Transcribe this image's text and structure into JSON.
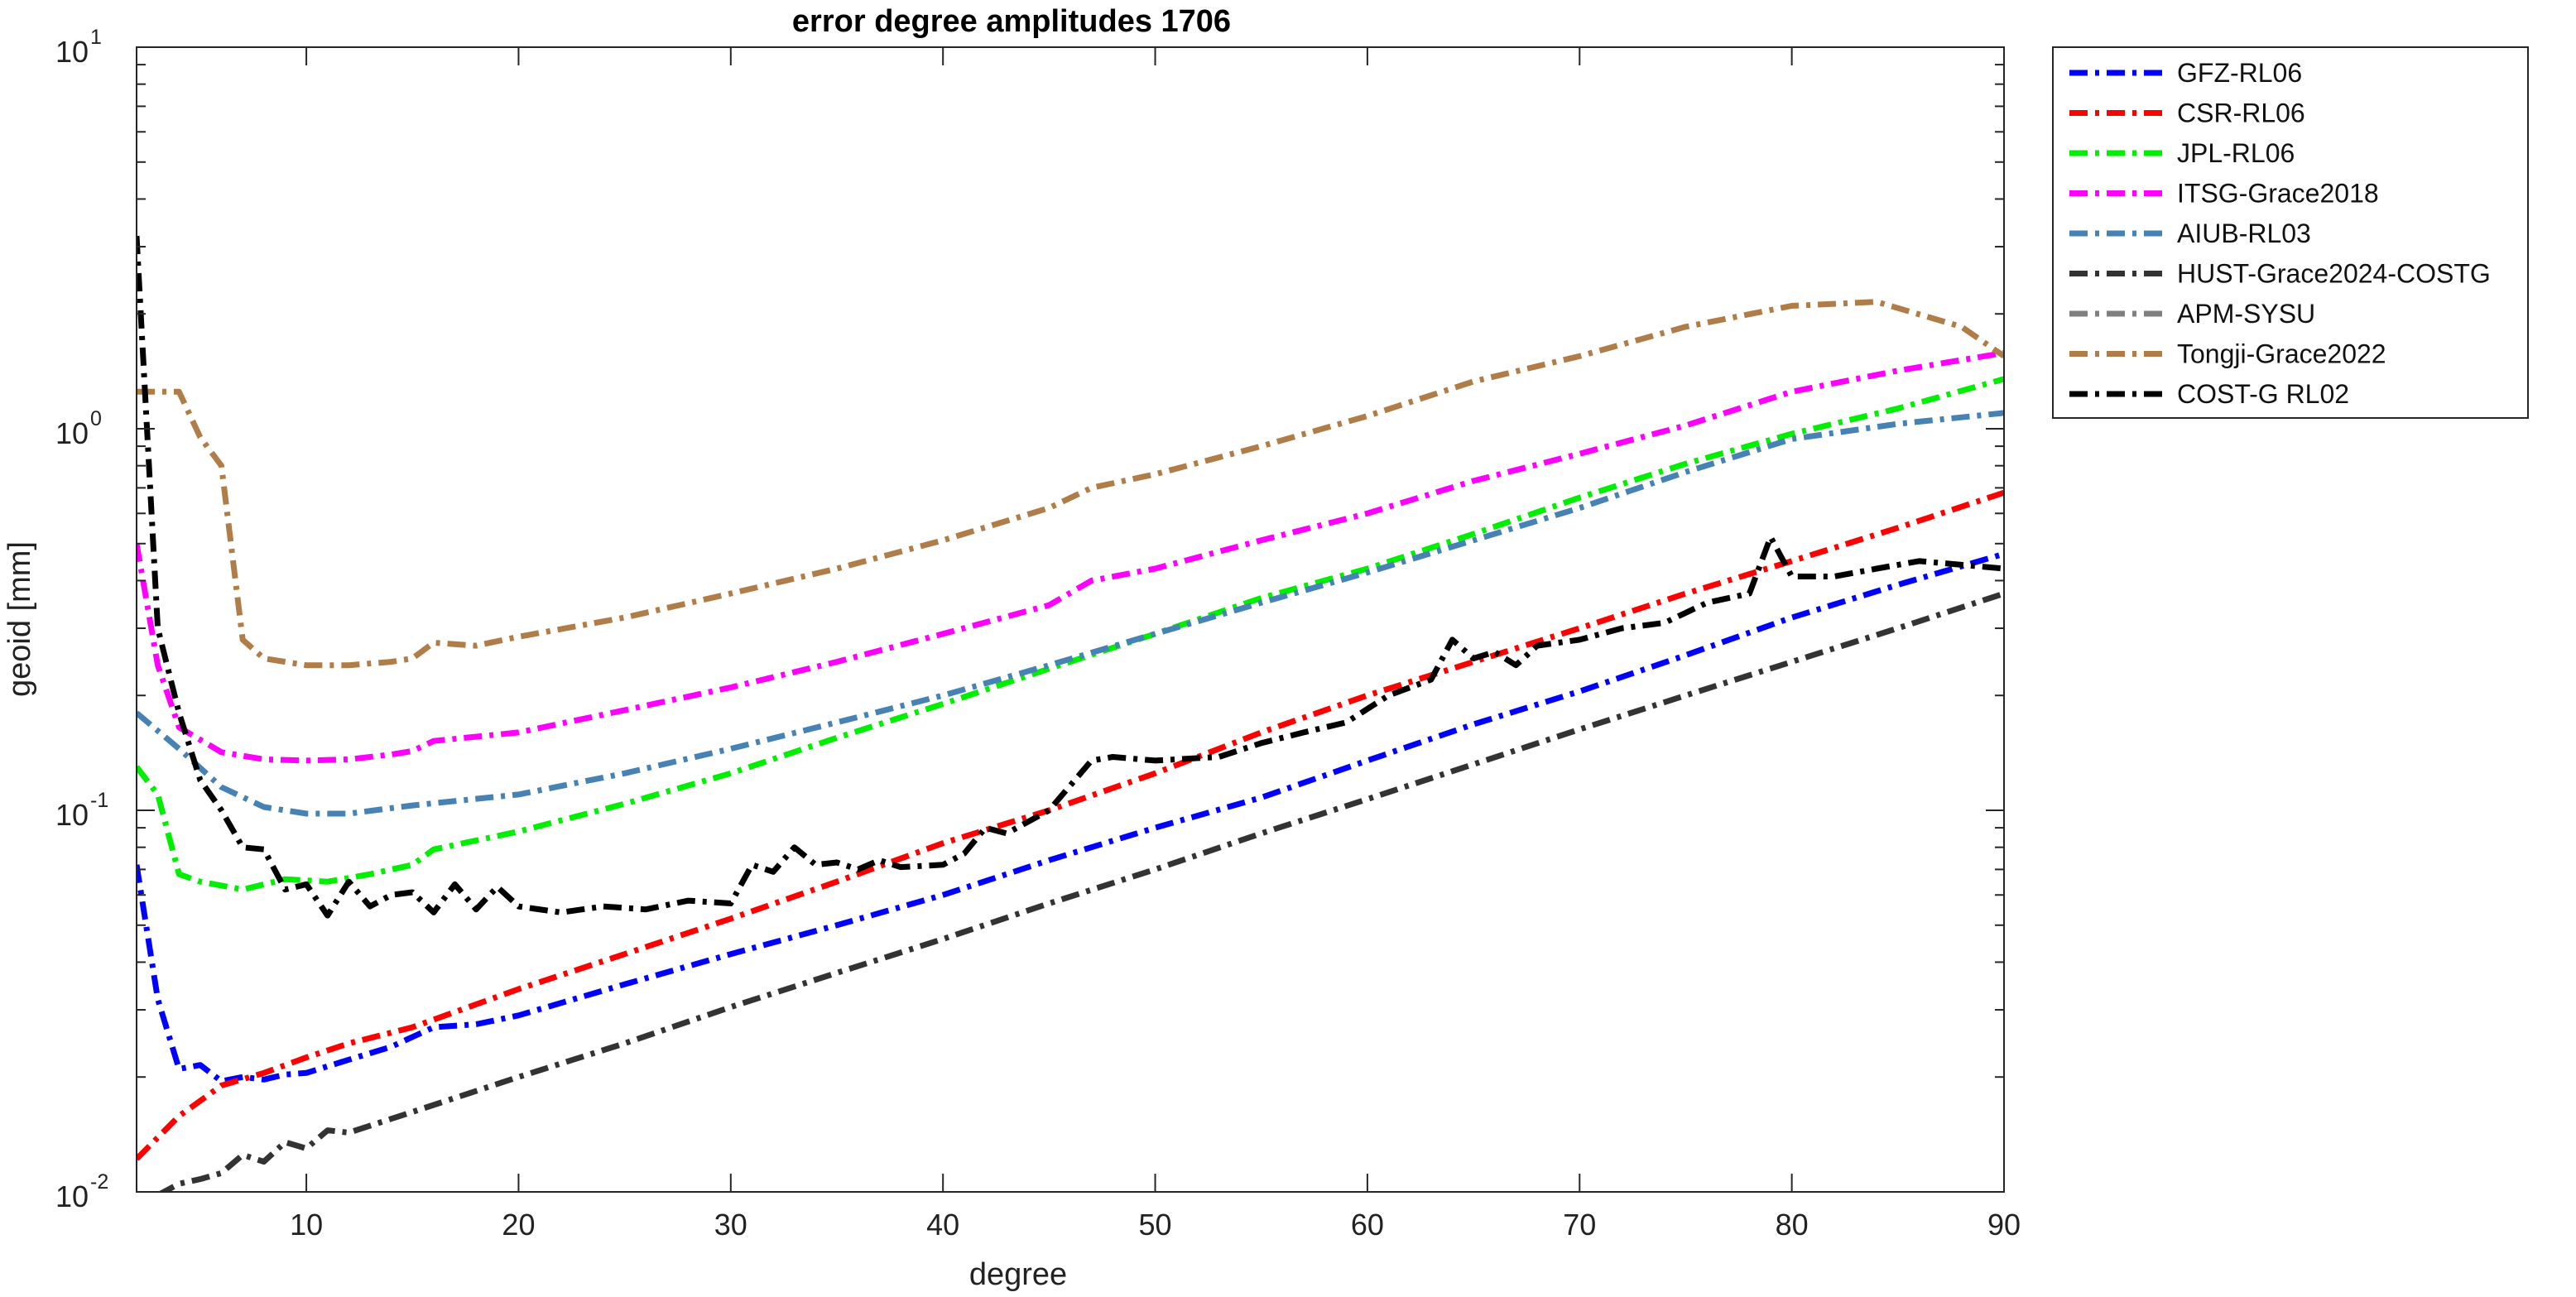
{
  "chart_data": {
    "type": "line",
    "title": "error degree amplitudes 1706",
    "xlabel": "degree",
    "ylabel": "geoid [mm]",
    "xlim": [
      2,
      90
    ],
    "ylim": [
      0.01,
      10
    ],
    "yscale": "log",
    "grid": false,
    "legend_position": "outside-right",
    "x_ticks": [
      10,
      20,
      30,
      40,
      50,
      60,
      70,
      80,
      90
    ],
    "y_ticks": [
      {
        "value": 0.01,
        "base": "10",
        "exp": "-2"
      },
      {
        "value": 0.1,
        "base": "10",
        "exp": "-1"
      },
      {
        "value": 1,
        "base": "10",
        "exp": "0"
      },
      {
        "value": 10,
        "base": "10",
        "exp": "1"
      }
    ],
    "series": [
      {
        "name": "GFZ-RL06",
        "color": "#0000ff",
        "dash": "dashdot",
        "points": [
          [
            2,
            0.072
          ],
          [
            3,
            0.032
          ],
          [
            4,
            0.021
          ],
          [
            5,
            0.0215
          ],
          [
            6,
            0.0195
          ],
          [
            7,
            0.02
          ],
          [
            8,
            0.0197
          ],
          [
            9,
            0.0203
          ],
          [
            10,
            0.0205
          ],
          [
            12,
            0.0222
          ],
          [
            14,
            0.024
          ],
          [
            16,
            0.027
          ],
          [
            18,
            0.0275
          ],
          [
            20,
            0.029
          ],
          [
            25,
            0.035
          ],
          [
            30,
            0.042
          ],
          [
            35,
            0.05
          ],
          [
            40,
            0.06
          ],
          [
            45,
            0.074
          ],
          [
            50,
            0.09
          ],
          [
            55,
            0.108
          ],
          [
            60,
            0.135
          ],
          [
            65,
            0.168
          ],
          [
            70,
            0.205
          ],
          [
            75,
            0.255
          ],
          [
            80,
            0.32
          ],
          [
            85,
            0.39
          ],
          [
            90,
            0.47
          ]
        ]
      },
      {
        "name": "CSR-RL06",
        "color": "#ff0000",
        "dash": "dashdot",
        "points": [
          [
            2,
            0.0122
          ],
          [
            4,
            0.0158
          ],
          [
            6,
            0.019
          ],
          [
            8,
            0.0205
          ],
          [
            10,
            0.0225
          ],
          [
            12,
            0.0245
          ],
          [
            15,
            0.027
          ],
          [
            20,
            0.034
          ],
          [
            25,
            0.042
          ],
          [
            30,
            0.052
          ],
          [
            35,
            0.065
          ],
          [
            40,
            0.082
          ],
          [
            45,
            0.1
          ],
          [
            50,
            0.125
          ],
          [
            55,
            0.16
          ],
          [
            60,
            0.2
          ],
          [
            65,
            0.245
          ],
          [
            70,
            0.3
          ],
          [
            75,
            0.37
          ],
          [
            80,
            0.45
          ],
          [
            85,
            0.55
          ],
          [
            90,
            0.68
          ]
        ]
      },
      {
        "name": "JPL-RL06",
        "color": "#00ee00",
        "dash": "dashdot",
        "points": [
          [
            2,
            0.13
          ],
          [
            3,
            0.11
          ],
          [
            4,
            0.068
          ],
          [
            5,
            0.065
          ],
          [
            7,
            0.062
          ],
          [
            9,
            0.066
          ],
          [
            11,
            0.065
          ],
          [
            13,
            0.068
          ],
          [
            15,
            0.072
          ],
          [
            16,
            0.079
          ],
          [
            20,
            0.088
          ],
          [
            25,
            0.104
          ],
          [
            30,
            0.125
          ],
          [
            35,
            0.155
          ],
          [
            40,
            0.19
          ],
          [
            45,
            0.235
          ],
          [
            50,
            0.29
          ],
          [
            55,
            0.36
          ],
          [
            60,
            0.43
          ],
          [
            65,
            0.53
          ],
          [
            70,
            0.66
          ],
          [
            75,
            0.81
          ],
          [
            80,
            0.97
          ],
          [
            85,
            1.13
          ],
          [
            90,
            1.35
          ]
        ]
      },
      {
        "name": "ITSG-Grace2018",
        "color": "#ff00ff",
        "dash": "dashdot",
        "points": [
          [
            2,
            0.5
          ],
          [
            3,
            0.24
          ],
          [
            4,
            0.165
          ],
          [
            6,
            0.142
          ],
          [
            8,
            0.136
          ],
          [
            10,
            0.135
          ],
          [
            12,
            0.136
          ],
          [
            14,
            0.14
          ],
          [
            15,
            0.143
          ],
          [
            16,
            0.152
          ],
          [
            20,
            0.16
          ],
          [
            25,
            0.183
          ],
          [
            30,
            0.21
          ],
          [
            35,
            0.245
          ],
          [
            40,
            0.29
          ],
          [
            45,
            0.345
          ],
          [
            47,
            0.4
          ],
          [
            50,
            0.43
          ],
          [
            55,
            0.51
          ],
          [
            60,
            0.6
          ],
          [
            65,
            0.73
          ],
          [
            70,
            0.86
          ],
          [
            75,
            1.02
          ],
          [
            80,
            1.25
          ],
          [
            85,
            1.42
          ],
          [
            90,
            1.58
          ]
        ]
      },
      {
        "name": "AIUB-RL03",
        "color": "#4682b4",
        "dash": "dashdot",
        "points": [
          [
            2,
            0.18
          ],
          [
            4,
            0.145
          ],
          [
            6,
            0.115
          ],
          [
            8,
            0.102
          ],
          [
            10,
            0.098
          ],
          [
            12,
            0.098
          ],
          [
            15,
            0.103
          ],
          [
            20,
            0.11
          ],
          [
            25,
            0.125
          ],
          [
            30,
            0.145
          ],
          [
            35,
            0.17
          ],
          [
            40,
            0.2
          ],
          [
            45,
            0.24
          ],
          [
            50,
            0.29
          ],
          [
            55,
            0.35
          ],
          [
            60,
            0.42
          ],
          [
            65,
            0.51
          ],
          [
            70,
            0.62
          ],
          [
            75,
            0.77
          ],
          [
            80,
            0.94
          ],
          [
            85,
            1.03
          ],
          [
            90,
            1.1
          ]
        ]
      },
      {
        "name": "HUST-Grace2024-COSTG",
        "color": "#333333",
        "dash": "dashdot",
        "points": [
          [
            3,
            0.0098
          ],
          [
            4,
            0.0105
          ],
          [
            5,
            0.0108
          ],
          [
            6,
            0.0112
          ],
          [
            7,
            0.0125
          ],
          [
            8,
            0.012
          ],
          [
            9,
            0.0135
          ],
          [
            10,
            0.013
          ],
          [
            11,
            0.0145
          ],
          [
            12,
            0.0143
          ],
          [
            15,
            0.0162
          ],
          [
            20,
            0.02
          ],
          [
            25,
            0.0245
          ],
          [
            30,
            0.0305
          ],
          [
            35,
            0.0375
          ],
          [
            40,
            0.046
          ],
          [
            45,
            0.057
          ],
          [
            50,
            0.07
          ],
          [
            55,
            0.087
          ],
          [
            60,
            0.107
          ],
          [
            65,
            0.132
          ],
          [
            70,
            0.163
          ],
          [
            75,
            0.2
          ],
          [
            80,
            0.245
          ],
          [
            85,
            0.3
          ],
          [
            90,
            0.37
          ]
        ]
      },
      {
        "name": "APM-SYSU",
        "color": "#808080",
        "dash": "dashdot",
        "points": []
      },
      {
        "name": "Tongji-Grace2022",
        "color": "#b07d48",
        "dash": "dashdot",
        "points": [
          [
            2,
            1.25
          ],
          [
            4,
            1.25
          ],
          [
            5,
            0.95
          ],
          [
            6,
            0.8
          ],
          [
            7,
            0.28
          ],
          [
            8,
            0.25
          ],
          [
            10,
            0.24
          ],
          [
            12,
            0.24
          ],
          [
            14,
            0.245
          ],
          [
            15,
            0.25
          ],
          [
            16,
            0.275
          ],
          [
            18,
            0.27
          ],
          [
            20,
            0.285
          ],
          [
            25,
            0.32
          ],
          [
            30,
            0.37
          ],
          [
            35,
            0.43
          ],
          [
            40,
            0.51
          ],
          [
            45,
            0.62
          ],
          [
            47,
            0.7
          ],
          [
            50,
            0.76
          ],
          [
            55,
            0.9
          ],
          [
            60,
            1.08
          ],
          [
            65,
            1.33
          ],
          [
            70,
            1.55
          ],
          [
            75,
            1.85
          ],
          [
            80,
            2.1
          ],
          [
            84,
            2.15
          ],
          [
            88,
            1.85
          ],
          [
            90,
            1.55
          ]
        ]
      },
      {
        "name": "COST-G RL02",
        "color": "#000000",
        "dash": "dashdot",
        "points": [
          [
            2,
            3.2
          ],
          [
            3,
            0.3
          ],
          [
            4,
            0.18
          ],
          [
            5,
            0.12
          ],
          [
            6,
            0.1
          ],
          [
            7,
            0.08
          ],
          [
            8,
            0.079
          ],
          [
            9,
            0.062
          ],
          [
            10,
            0.064
          ],
          [
            11,
            0.053
          ],
          [
            12,
            0.065
          ],
          [
            13,
            0.056
          ],
          [
            14,
            0.06
          ],
          [
            15,
            0.061
          ],
          [
            16,
            0.054
          ],
          [
            17,
            0.064
          ],
          [
            18,
            0.055
          ],
          [
            19,
            0.063
          ],
          [
            20,
            0.056
          ],
          [
            22,
            0.054
          ],
          [
            24,
            0.056
          ],
          [
            26,
            0.055
          ],
          [
            28,
            0.058
          ],
          [
            30,
            0.057
          ],
          [
            31,
            0.072
          ],
          [
            32,
            0.069
          ],
          [
            33,
            0.08
          ],
          [
            34,
            0.072
          ],
          [
            35,
            0.073
          ],
          [
            36,
            0.07
          ],
          [
            37,
            0.074
          ],
          [
            38,
            0.071
          ],
          [
            40,
            0.072
          ],
          [
            41,
            0.077
          ],
          [
            42,
            0.09
          ],
          [
            43,
            0.087
          ],
          [
            45,
            0.1
          ],
          [
            47,
            0.135
          ],
          [
            48,
            0.138
          ],
          [
            50,
            0.135
          ],
          [
            53,
            0.138
          ],
          [
            55,
            0.15
          ],
          [
            57,
            0.16
          ],
          [
            59,
            0.17
          ],
          [
            61,
            0.2
          ],
          [
            63,
            0.22
          ],
          [
            64,
            0.28
          ],
          [
            65,
            0.25
          ],
          [
            66,
            0.26
          ],
          [
            67,
            0.24
          ],
          [
            68,
            0.27
          ],
          [
            70,
            0.28
          ],
          [
            72,
            0.3
          ],
          [
            74,
            0.31
          ],
          [
            76,
            0.35
          ],
          [
            78,
            0.37
          ],
          [
            79,
            0.52
          ],
          [
            80,
            0.41
          ],
          [
            82,
            0.41
          ],
          [
            84,
            0.43
          ],
          [
            86,
            0.45
          ],
          [
            88,
            0.44
          ],
          [
            90,
            0.43
          ]
        ]
      }
    ]
  }
}
